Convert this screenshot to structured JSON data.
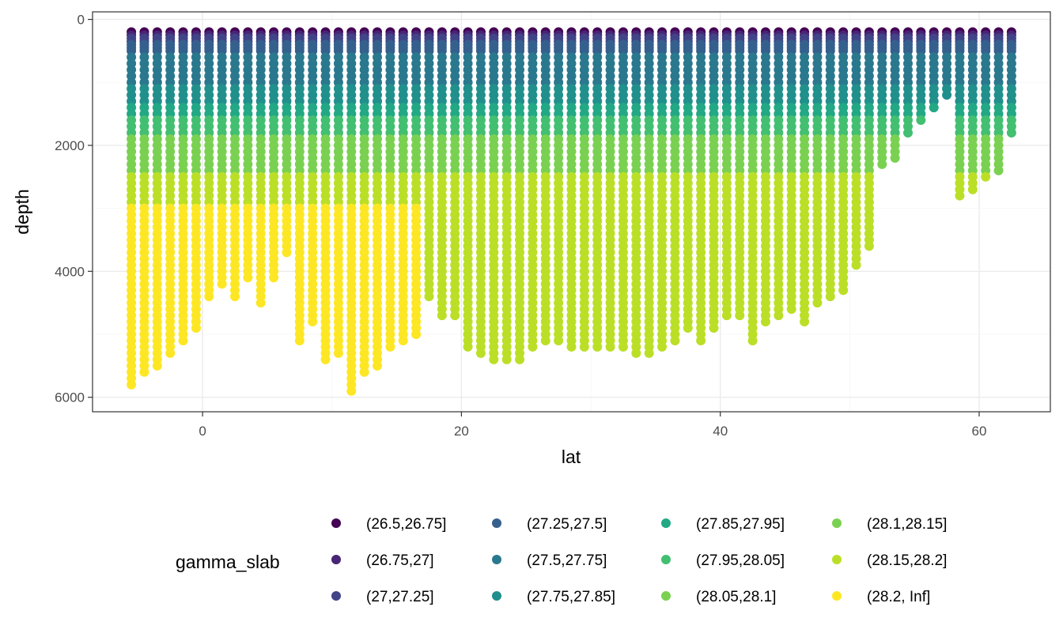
{
  "chart_data": {
    "type": "scatter",
    "title": "",
    "xlabel": "lat",
    "ylabel": "depth",
    "xlim": [
      -8.5,
      65.5
    ],
    "ylim": [
      6230,
      -120
    ],
    "y_reversed": true,
    "x_ticks": [
      0,
      20,
      40,
      60
    ],
    "y_ticks": [
      0,
      2000,
      4000,
      6000
    ],
    "x_tick_labels": [
      "0",
      "20",
      "40",
      "60"
    ],
    "y_tick_labels": [
      "0",
      "2000",
      "4000",
      "6000"
    ],
    "grid": true,
    "legend": {
      "title": "gamma_slab",
      "position": "bottom",
      "entries": [
        {
          "label": "(26.5,26.75]",
          "color": "#440154"
        },
        {
          "label": "(26.75,27]",
          "color": "#482576"
        },
        {
          "label": "(27,27.25]",
          "color": "#414487"
        },
        {
          "label": "(27.25,27.5]",
          "color": "#35608D"
        },
        {
          "label": "(27.5,27.75]",
          "color": "#2A788E"
        },
        {
          "label": "(27.75,27.85]",
          "color": "#21908C"
        },
        {
          "label": "(27.85,27.95]",
          "color": "#22A884"
        },
        {
          "label": "(27.95,28.05]",
          "color": "#43BF71"
        },
        {
          "label": "(28.05,28.1]",
          "color": "#7AD151"
        },
        {
          "label": "(28.1,28.15]",
          "color": "#7AD151"
        },
        {
          "label": "(28.15,28.2]",
          "color": "#BBDF27"
        },
        {
          "label": "(28.2, Inf]",
          "color": "#FDE725"
        }
      ]
    },
    "lat_values": [
      -5.5,
      -4.5,
      -3.5,
      -2.5,
      -1.5,
      -0.5,
      0.5,
      1.5,
      2.5,
      3.5,
      4.5,
      5.5,
      6.5,
      7.5,
      8.5,
      9.5,
      10.5,
      11.5,
      12.5,
      13.5,
      14.5,
      15.5,
      16.5,
      17.5,
      18.5,
      19.5,
      20.5,
      21.5,
      22.5,
      23.5,
      24.5,
      25.5,
      26.5,
      27.5,
      28.5,
      29.5,
      30.5,
      31.5,
      32.5,
      33.5,
      34.5,
      35.5,
      36.5,
      37.5,
      38.5,
      39.5,
      40.5,
      41.5,
      42.5,
      43.5,
      44.5,
      45.5,
      46.5,
      47.5,
      48.5,
      49.5,
      50.5,
      51.5,
      52.5,
      53.5,
      54.5,
      55.5,
      56.5,
      57.5,
      58.5,
      59.5,
      60.5,
      61.5,
      62.5
    ],
    "max_depths": [
      5800,
      5650,
      5550,
      5300,
      5150,
      4900,
      4450,
      4200,
      4400,
      4150,
      4500,
      4150,
      3750,
      5100,
      4800,
      5450,
      5350,
      5950,
      5650,
      5500,
      5250,
      5150,
      5050,
      4450,
      4750,
      4700,
      5200,
      5350,
      5450,
      5450,
      5400,
      5250,
      5150,
      5150,
      5200,
      5200,
      5200,
      5250,
      5250,
      5300,
      5300,
      5250,
      5150,
      4950,
      5150,
      4900,
      4750,
      4700,
      5150,
      4800,
      4750,
      4650,
      4850,
      4550,
      4450,
      4300,
      3900,
      3650,
      2300,
      2250,
      1800,
      1600,
      1400,
      1250,
      2850,
      2750,
      2500,
      2400,
      1800
    ],
    "depth_levels_m": [
      200,
      250,
      300,
      350,
      400,
      450,
      500,
      600,
      700,
      800,
      900,
      1000,
      1100,
      1200,
      1300,
      1400,
      1500,
      1600,
      1700,
      1800,
      1900,
      2000,
      2100,
      2200,
      2300,
      2400,
      2500,
      2600,
      2700,
      2800,
      2900,
      3000,
      3100,
      3200,
      3300,
      3400,
      3500,
      3600,
      3700,
      3800,
      3900,
      4000,
      4100,
      4200,
      4300,
      4400,
      4500,
      4600,
      4700,
      4800,
      4900,
      5000,
      5100,
      5200,
      5300,
      5400,
      5500,
      5600,
      5700,
      5800,
      5900
    ],
    "class_thresholds_m": {
      "(26.5,26.75]": [
        0,
        230
      ],
      "(26.75,27]": [
        230,
        290
      ],
      "(27,27.25]": [
        290,
        360
      ],
      "(27.25,27.5]": [
        360,
        600
      ],
      "(27.5,27.75]": [
        600,
        1100
      ],
      "(27.75,27.85]": [
        1100,
        1400
      ],
      "(27.85,27.95]": [
        1400,
        1600
      ],
      "(27.95,28.05]": [
        1600,
        1850
      ],
      "(28.05,28.1]": [
        1850,
        2100
      ],
      "(28.1,28.15]": [
        2100,
        2500
      ],
      "(28.15,28.2]": [
        2500,
        9999
      ],
      "(28.2, Inf]": [
        3000,
        9999
      ]
    },
    "bottom_water_lat_max": 16.5
  }
}
